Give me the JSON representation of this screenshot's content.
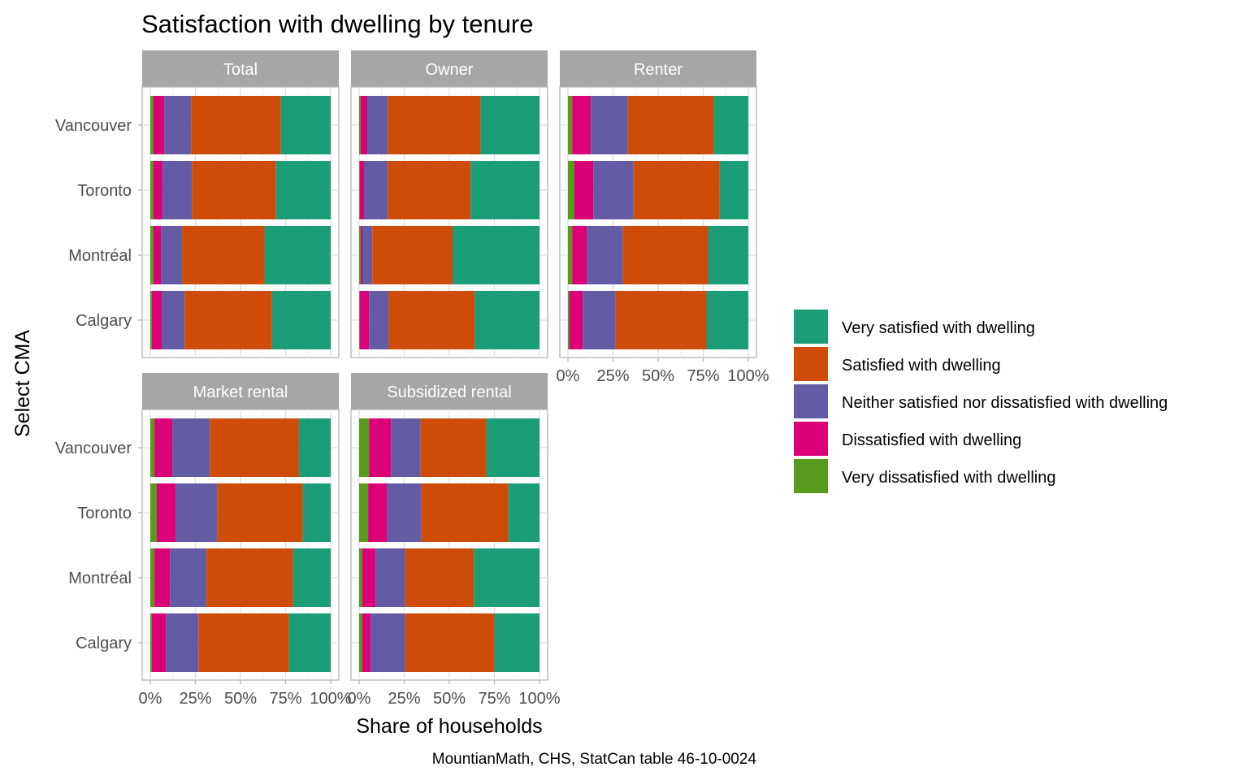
{
  "chart_data": {
    "type": "bar",
    "orientation": "horizontal",
    "stacked": true,
    "normalized": true,
    "title": "Satisfaction with dwelling by tenure",
    "xlabel": "Share of households",
    "ylabel": "Select CMA",
    "caption": "MountianMath, CHS, StatCan table 46-10-0024",
    "xlim": [
      0,
      1
    ],
    "x_ticks": [
      "0%",
      "25%",
      "50%",
      "75%",
      "100%"
    ],
    "categories": [
      "Vancouver",
      "Toronto",
      "Montréal",
      "Calgary"
    ],
    "legend_position": "right",
    "grid": true,
    "series_order_left_to_right": [
      "Very dissatisfied with dwelling",
      "Dissatisfied with dwelling",
      "Neither satisfied nor dissatisfied with dwelling",
      "Satisfied with dwelling",
      "Very satisfied with dwelling"
    ],
    "legend": [
      {
        "name": "Very satisfied with dwelling",
        "color": "#1b9e77"
      },
      {
        "name": "Satisfied with dwelling",
        "color": "#d95f02"
      },
      {
        "name": "Neither satisfied nor dissatisfied with dwelling",
        "color": "#7570b3"
      },
      {
        "name": "Dissatisfied with dwelling",
        "color": "#e7298a"
      },
      {
        "name": "Very dissatisfied with dwelling",
        "color": "#66a61e"
      }
    ],
    "colors": {
      "Very satisfied with dwelling": "#1b9e77",
      "Satisfied with dwelling": "#cf4c08",
      "Neither satisfied nor dissatisfied with dwelling": "#635ca5",
      "Dissatisfied with dwelling": "#dc0078",
      "Very dissatisfied with dwelling": "#579a1d"
    },
    "panels": [
      {
        "name": "Total",
        "rows": [
          {
            "city": "Vancouver",
            "Very dissatisfied with dwelling": 0.018,
            "Dissatisfied with dwelling": 0.059,
            "Neither satisfied nor dissatisfied with dwelling": 0.149,
            "Satisfied with dwelling": 0.498,
            "Very satisfied with dwelling": 0.276
          },
          {
            "city": "Toronto",
            "Very dissatisfied with dwelling": 0.018,
            "Dissatisfied with dwelling": 0.05,
            "Neither satisfied nor dissatisfied with dwelling": 0.163,
            "Satisfied with dwelling": 0.466,
            "Very satisfied with dwelling": 0.303
          },
          {
            "city": "Montréal",
            "Very dissatisfied with dwelling": 0.018,
            "Dissatisfied with dwelling": 0.041,
            "Neither satisfied nor dissatisfied with dwelling": 0.117,
            "Satisfied with dwelling": 0.457,
            "Very satisfied with dwelling": 0.367
          },
          {
            "city": "Calgary",
            "Very dissatisfied with dwelling": 0.009,
            "Dissatisfied with dwelling": 0.054,
            "Neither satisfied nor dissatisfied with dwelling": 0.127,
            "Satisfied with dwelling": 0.484,
            "Very satisfied with dwelling": 0.326
          }
        ]
      },
      {
        "name": "Owner",
        "rows": [
          {
            "city": "Vancouver",
            "Very dissatisfied with dwelling": 0.009,
            "Dissatisfied with dwelling": 0.036,
            "Neither satisfied nor dissatisfied with dwelling": 0.114,
            "Satisfied with dwelling": 0.514,
            "Very satisfied with dwelling": 0.327
          },
          {
            "city": "Toronto",
            "Very dissatisfied with dwelling": 0.003,
            "Dissatisfied with dwelling": 0.024,
            "Neither satisfied nor dissatisfied with dwelling": 0.132,
            "Satisfied with dwelling": 0.459,
            "Very satisfied with dwelling": 0.382
          },
          {
            "city": "Montréal",
            "Very dissatisfied with dwelling": 0.009,
            "Dissatisfied with dwelling": 0.009,
            "Neither satisfied nor dissatisfied with dwelling": 0.055,
            "Satisfied with dwelling": 0.445,
            "Very satisfied with dwelling": 0.482
          },
          {
            "city": "Calgary",
            "Very dissatisfied with dwelling": 0.003,
            "Dissatisfied with dwelling": 0.052,
            "Neither satisfied nor dissatisfied with dwelling": 0.109,
            "Satisfied with dwelling": 0.477,
            "Very satisfied with dwelling": 0.359
          }
        ]
      },
      {
        "name": "Renter",
        "rows": [
          {
            "city": "Vancouver",
            "Very dissatisfied with dwelling": 0.023,
            "Dissatisfied with dwelling": 0.104,
            "Neither satisfied nor dissatisfied with dwelling": 0.205,
            "Satisfied with dwelling": 0.477,
            "Very satisfied with dwelling": 0.191
          },
          {
            "city": "Toronto",
            "Very dissatisfied with dwelling": 0.036,
            "Dissatisfied with dwelling": 0.105,
            "Neither satisfied nor dissatisfied with dwelling": 0.223,
            "Satisfied with dwelling": 0.477,
            "Very satisfied with dwelling": 0.159
          },
          {
            "city": "Montréal",
            "Very dissatisfied with dwelling": 0.023,
            "Dissatisfied with dwelling": 0.082,
            "Neither satisfied nor dissatisfied with dwelling": 0.2,
            "Satisfied with dwelling": 0.472,
            "Very satisfied with dwelling": 0.223
          },
          {
            "city": "Calgary",
            "Very dissatisfied with dwelling": 0.009,
            "Dissatisfied with dwelling": 0.073,
            "Neither satisfied nor dissatisfied with dwelling": 0.182,
            "Satisfied with dwelling": 0.504,
            "Very satisfied with dwelling": 0.232
          }
        ]
      },
      {
        "name": "Market rental",
        "rows": [
          {
            "city": "Vancouver",
            "Very dissatisfied with dwelling": 0.023,
            "Dissatisfied with dwelling": 0.099,
            "Neither satisfied nor dissatisfied with dwelling": 0.208,
            "Satisfied with dwelling": 0.494,
            "Very satisfied with dwelling": 0.176
          },
          {
            "city": "Toronto",
            "Very dissatisfied with dwelling": 0.036,
            "Dissatisfied with dwelling": 0.104,
            "Neither satisfied nor dissatisfied with dwelling": 0.231,
            "Satisfied with dwelling": 0.475,
            "Very satisfied with dwelling": 0.154
          },
          {
            "city": "Montréal",
            "Very dissatisfied with dwelling": 0.023,
            "Dissatisfied with dwelling": 0.086,
            "Neither satisfied nor dissatisfied with dwelling": 0.203,
            "Satisfied with dwelling": 0.48,
            "Very satisfied with dwelling": 0.208
          },
          {
            "city": "Calgary",
            "Very dissatisfied with dwelling": 0.009,
            "Dissatisfied with dwelling": 0.077,
            "Neither satisfied nor dissatisfied with dwelling": 0.181,
            "Satisfied with dwelling": 0.502,
            "Very satisfied with dwelling": 0.231
          }
        ]
      },
      {
        "name": "Subsidized rental",
        "rows": [
          {
            "city": "Vancouver",
            "Very dissatisfied with dwelling": 0.055,
            "Dissatisfied with dwelling": 0.122,
            "Neither satisfied nor dissatisfied with dwelling": 0.164,
            "Satisfied with dwelling": 0.364,
            "Very satisfied with dwelling": 0.295
          },
          {
            "city": "Toronto",
            "Very dissatisfied with dwelling": 0.05,
            "Dissatisfied with dwelling": 0.105,
            "Neither satisfied nor dissatisfied with dwelling": 0.19,
            "Satisfied with dwelling": 0.482,
            "Very satisfied with dwelling": 0.173
          },
          {
            "city": "Montréal",
            "Very dissatisfied with dwelling": 0.018,
            "Dissatisfied with dwelling": 0.073,
            "Neither satisfied nor dissatisfied with dwelling": 0.164,
            "Satisfied with dwelling": 0.381,
            "Very satisfied with dwelling": 0.364
          },
          {
            "city": "Calgary",
            "Very dissatisfied with dwelling": 0.018,
            "Dissatisfied with dwelling": 0.046,
            "Neither satisfied nor dissatisfied with dwelling": 0.191,
            "Satisfied with dwelling": 0.495,
            "Very satisfied with dwelling": 0.25
          }
        ]
      }
    ]
  }
}
